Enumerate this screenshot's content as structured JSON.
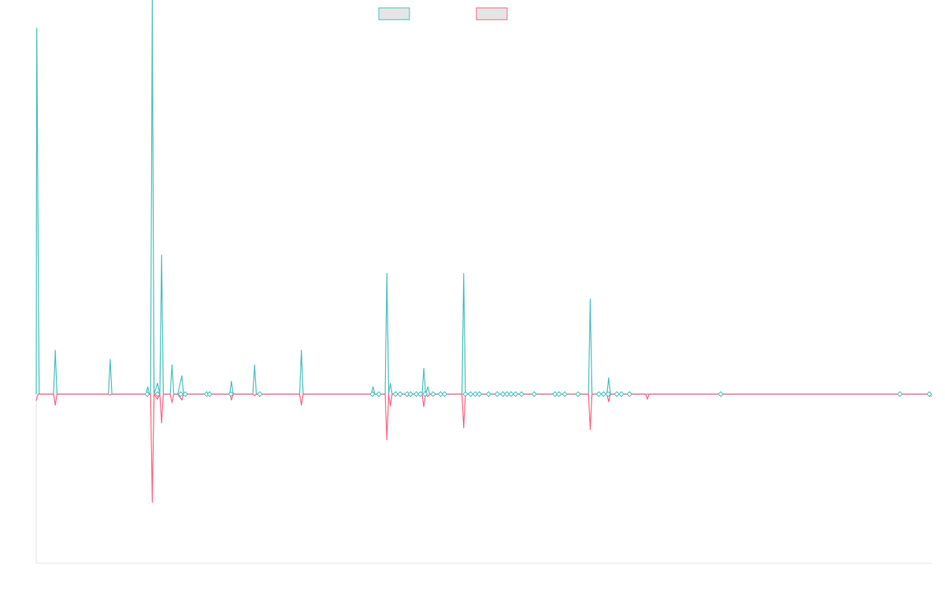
{
  "chart_data": {
    "type": "line",
    "title": "",
    "xlabel": "",
    "ylabel": "",
    "grid": false,
    "legend": {
      "position": "top-center",
      "entries": [
        "",
        ""
      ]
    },
    "ylim": [
      -100,
      100
    ],
    "xlim": [
      0,
      155
    ],
    "colors": {
      "series_a": "#4bc0c0",
      "series_b": "#ff6384",
      "legend_fill": "#e5e5e5",
      "axis": "#e5e5e5"
    },
    "series": [
      {
        "color": "#4bc0c0",
        "points": [
          [
            0,
            0
          ],
          [
            0.1,
            100
          ],
          [
            0.5,
            0
          ],
          [
            3,
            0
          ],
          [
            3.3,
            12
          ],
          [
            3.6,
            0
          ],
          [
            12.5,
            0
          ],
          [
            12.8,
            9.5
          ],
          [
            13.1,
            0
          ],
          [
            19,
            0
          ],
          [
            19.3,
            2
          ],
          [
            19.6,
            0
          ],
          [
            19.8,
            0
          ],
          [
            20.1,
            108
          ],
          [
            20.4,
            0
          ],
          [
            21,
            3
          ],
          [
            21.4,
            0
          ],
          [
            21.7,
            38
          ],
          [
            22,
            0
          ],
          [
            23.2,
            0
          ],
          [
            23.5,
            8
          ],
          [
            23.8,
            0
          ],
          [
            24.5,
            0
          ],
          [
            25.2,
            5
          ],
          [
            25.5,
            0
          ],
          [
            33.5,
            0
          ],
          [
            33.8,
            3.5
          ],
          [
            34.1,
            0
          ],
          [
            37.5,
            0
          ],
          [
            37.8,
            8
          ],
          [
            38.1,
            0
          ],
          [
            45.6,
            0
          ],
          [
            45.9,
            12
          ],
          [
            46.2,
            0
          ],
          [
            58,
            0
          ],
          [
            58.3,
            2
          ],
          [
            58.6,
            0
          ],
          [
            60.4,
            0
          ],
          [
            60.7,
            33
          ],
          [
            61,
            0
          ],
          [
            61.3,
            3
          ],
          [
            61.6,
            0
          ],
          [
            66.8,
            0
          ],
          [
            67.1,
            7
          ],
          [
            67.4,
            0
          ],
          [
            67.8,
            2
          ],
          [
            68.1,
            0
          ],
          [
            73.7,
            0
          ],
          [
            74,
            33
          ],
          [
            74.3,
            0
          ],
          [
            95.6,
            0
          ],
          [
            95.9,
            26
          ],
          [
            96.2,
            0
          ],
          [
            98.8,
            0
          ],
          [
            99.1,
            4.5
          ],
          [
            99.4,
            0
          ],
          [
            150,
            0
          ],
          [
            155,
            0
          ]
        ]
      },
      {
        "color": "#ff6384",
        "points": [
          [
            0,
            -4
          ],
          [
            0.3,
            0
          ],
          [
            3,
            0
          ],
          [
            3.3,
            -6.5
          ],
          [
            3.6,
            0
          ],
          [
            12.5,
            0
          ],
          [
            12.8,
            -0.5
          ],
          [
            13.1,
            0
          ],
          [
            19,
            0
          ],
          [
            19.3,
            -1
          ],
          [
            19.6,
            0
          ],
          [
            19.8,
            0
          ],
          [
            20.1,
            -64
          ],
          [
            20.4,
            0
          ],
          [
            21,
            -3
          ],
          [
            21.4,
            0
          ],
          [
            21.7,
            -17
          ],
          [
            22,
            0
          ],
          [
            23.2,
            0
          ],
          [
            23.5,
            -5
          ],
          [
            23.8,
            0
          ],
          [
            24.5,
            0
          ],
          [
            25.2,
            -3.5
          ],
          [
            25.5,
            0
          ],
          [
            33.5,
            0
          ],
          [
            33.8,
            -3.5
          ],
          [
            34.1,
            0
          ],
          [
            37.5,
            0
          ],
          [
            37.8,
            -1
          ],
          [
            38.1,
            0
          ],
          [
            45.6,
            0
          ],
          [
            45.9,
            -6.5
          ],
          [
            46.2,
            0
          ],
          [
            58,
            0
          ],
          [
            58.3,
            -1
          ],
          [
            58.6,
            0
          ],
          [
            60.4,
            0
          ],
          [
            60.7,
            -27
          ],
          [
            61,
            0
          ],
          [
            61.3,
            -7
          ],
          [
            61.6,
            0
          ],
          [
            66.8,
            0
          ],
          [
            67.1,
            -7.5
          ],
          [
            67.4,
            0
          ],
          [
            67.8,
            -1.5
          ],
          [
            68.1,
            0
          ],
          [
            73.7,
            0
          ],
          [
            74,
            -20
          ],
          [
            74.3,
            0
          ],
          [
            95.6,
            0
          ],
          [
            95.9,
            -21
          ],
          [
            96.2,
            0
          ],
          [
            98.8,
            0
          ],
          [
            99.1,
            -4.5
          ],
          [
            99.4,
            0
          ],
          [
            105.5,
            0
          ],
          [
            105.8,
            -3
          ],
          [
            106.1,
            0
          ],
          [
            154.5,
            0
          ],
          [
            155,
            -1.5
          ]
        ]
      }
    ],
    "point_markers": [
      19.2,
      21,
      25,
      25.8,
      29.5,
      30,
      33.7,
      38.7,
      58.2,
      59.3,
      62.2,
      63,
      64.2,
      64.8,
      65.8,
      66.5,
      67.3,
      68.7,
      70,
      70.7,
      74.3,
      75.2,
      76,
      76.7,
      78.3,
      79.8,
      80.8,
      81.5,
      82.2,
      83,
      84,
      86.2,
      89.8,
      90.5,
      91.5,
      93.8,
      97.4,
      98.2,
      99,
      100.5,
      101.3,
      102.7,
      118.5,
      149.5,
      154.6
    ]
  }
}
